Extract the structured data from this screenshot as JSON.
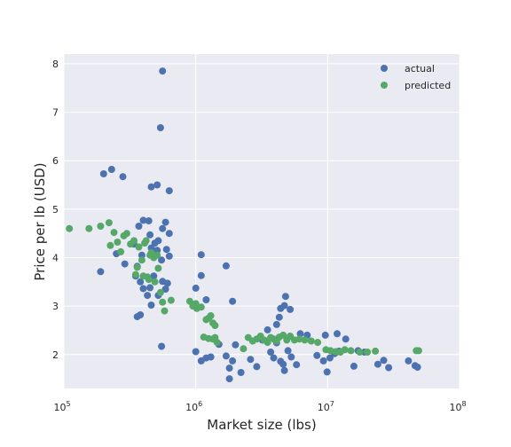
{
  "chart_data": {
    "type": "scatter",
    "xscale": "log",
    "xlabel": "Market size (lbs)",
    "ylabel": "Price per lb (USD)",
    "xlim": [
      100000,
      100000000
    ],
    "ylim": [
      1.3,
      8.2
    ],
    "grid": true,
    "legend_position": "top-right",
    "x_ticks": [
      {
        "base": "10",
        "exp": "5"
      },
      {
        "base": "10",
        "exp": "6"
      },
      {
        "base": "10",
        "exp": "7"
      },
      {
        "base": "10",
        "exp": "8"
      }
    ],
    "y_ticks": [
      "2",
      "3",
      "4",
      "5",
      "6",
      "7",
      "8"
    ],
    "series": [
      {
        "name": "actual",
        "color": "#4c72b0",
        "points": [
          [
            560000,
            7.85
          ],
          [
            540000,
            6.68
          ],
          [
            200000,
            5.73
          ],
          [
            230000,
            5.82
          ],
          [
            280000,
            5.67
          ],
          [
            510000,
            5.5
          ],
          [
            460000,
            5.46
          ],
          [
            630000,
            5.38
          ],
          [
            440000,
            4.76
          ],
          [
            590000,
            4.73
          ],
          [
            400000,
            4.77
          ],
          [
            370000,
            4.65
          ],
          [
            560000,
            4.6
          ],
          [
            630000,
            4.5
          ],
          [
            450000,
            4.47
          ],
          [
            520000,
            4.35
          ],
          [
            490000,
            4.3
          ],
          [
            340000,
            4.28
          ],
          [
            600000,
            4.17
          ],
          [
            460000,
            4.2
          ],
          [
            510000,
            4.15
          ],
          [
            250000,
            4.08
          ],
          [
            390000,
            4.05
          ],
          [
            630000,
            4.03
          ],
          [
            550000,
            3.95
          ],
          [
            290000,
            3.87
          ],
          [
            360000,
            3.82
          ],
          [
            190000,
            3.71
          ],
          [
            480000,
            3.62
          ],
          [
            350000,
            3.62
          ],
          [
            560000,
            3.51
          ],
          [
            380000,
            3.5
          ],
          [
            610000,
            3.47
          ],
          [
            400000,
            3.36
          ],
          [
            450000,
            3.38
          ],
          [
            590000,
            3.35
          ],
          [
            430000,
            3.22
          ],
          [
            520000,
            3.22
          ],
          [
            460000,
            3.02
          ],
          [
            360000,
            2.78
          ],
          [
            380000,
            2.82
          ],
          [
            1100000,
            4.06
          ],
          [
            1100000,
            3.63
          ],
          [
            1000000,
            3.37
          ],
          [
            1700000,
            3.83
          ],
          [
            1900000,
            3.1
          ],
          [
            1200000,
            3.13
          ],
          [
            550000,
            2.17
          ],
          [
            1000000,
            2.06
          ],
          [
            1200000,
            1.93
          ],
          [
            1100000,
            1.87
          ],
          [
            1300000,
            1.95
          ],
          [
            1500000,
            2.21
          ],
          [
            1700000,
            1.97
          ],
          [
            1800000,
            1.72
          ],
          [
            1900000,
            1.87
          ],
          [
            2000000,
            2.2
          ],
          [
            1800000,
            1.5
          ],
          [
            2200000,
            1.63
          ],
          [
            2600000,
            1.9
          ],
          [
            2900000,
            1.75
          ],
          [
            3200000,
            2.3
          ],
          [
            3500000,
            2.51
          ],
          [
            3700000,
            2.05
          ],
          [
            3900000,
            1.93
          ],
          [
            4100000,
            2.62
          ],
          [
            4300000,
            2.77
          ],
          [
            4400000,
            2.95
          ],
          [
            4700000,
            3.01
          ],
          [
            4800000,
            3.2
          ],
          [
            5200000,
            2.93
          ],
          [
            4100000,
            2.24
          ],
          [
            4400000,
            1.86
          ],
          [
            4600000,
            1.8
          ],
          [
            4700000,
            1.67
          ],
          [
            5000000,
            2.08
          ],
          [
            5300000,
            1.95
          ],
          [
            5800000,
            1.79
          ],
          [
            6200000,
            2.43
          ],
          [
            7000000,
            2.4
          ],
          [
            8300000,
            1.98
          ],
          [
            9300000,
            1.87
          ],
          [
            9600000,
            2.4
          ],
          [
            9900000,
            1.64
          ],
          [
            10400000,
            1.93
          ],
          [
            11300000,
            2.02
          ],
          [
            11800000,
            2.43
          ],
          [
            12200000,
            2.07
          ],
          [
            13700000,
            2.32
          ],
          [
            15800000,
            1.76
          ],
          [
            17000000,
            2.08
          ],
          [
            19000000,
            2.05
          ],
          [
            24000000,
            1.8
          ],
          [
            26600000,
            1.88
          ],
          [
            29000000,
            1.73
          ],
          [
            41000000,
            1.87
          ],
          [
            46000000,
            1.77
          ],
          [
            48000000,
            1.74
          ]
        ]
      },
      {
        "name": "predicted",
        "color": "#55a868",
        "points": [
          [
            110000,
            4.6
          ],
          [
            155000,
            4.6
          ],
          [
            190000,
            4.65
          ],
          [
            220000,
            4.72
          ],
          [
            225000,
            4.25
          ],
          [
            240000,
            4.52
          ],
          [
            255000,
            4.32
          ],
          [
            270000,
            4.12
          ],
          [
            285000,
            4.45
          ],
          [
            300000,
            4.5
          ],
          [
            320000,
            4.28
          ],
          [
            340000,
            4.35
          ],
          [
            350000,
            3.65
          ],
          [
            360000,
            3.8
          ],
          [
            370000,
            4.22
          ],
          [
            390000,
            3.95
          ],
          [
            400000,
            3.62
          ],
          [
            410000,
            4.3
          ],
          [
            420000,
            4.35
          ],
          [
            430000,
            3.6
          ],
          [
            440000,
            3.55
          ],
          [
            450000,
            4.05
          ],
          [
            460000,
            4.1
          ],
          [
            480000,
            4.0
          ],
          [
            490000,
            3.5
          ],
          [
            510000,
            4.05
          ],
          [
            520000,
            3.78
          ],
          [
            540000,
            3.28
          ],
          [
            560000,
            3.08
          ],
          [
            580000,
            2.9
          ],
          [
            650000,
            3.12
          ],
          [
            900000,
            3.1
          ],
          [
            950000,
            3.0
          ],
          [
            1000000,
            3.05
          ],
          [
            1020000,
            2.95
          ],
          [
            1100000,
            2.98
          ],
          [
            1200000,
            2.72
          ],
          [
            1250000,
            2.75
          ],
          [
            1300000,
            2.8
          ],
          [
            1350000,
            2.65
          ],
          [
            1400000,
            2.6
          ],
          [
            1150000,
            2.36
          ],
          [
            1250000,
            2.33
          ],
          [
            1350000,
            2.32
          ],
          [
            1400000,
            2.35
          ],
          [
            1450000,
            2.25
          ],
          [
            2300000,
            2.12
          ],
          [
            2500000,
            2.35
          ],
          [
            2700000,
            2.28
          ],
          [
            2900000,
            2.32
          ],
          [
            3100000,
            2.38
          ],
          [
            3300000,
            2.3
          ],
          [
            3500000,
            2.25
          ],
          [
            3700000,
            2.35
          ],
          [
            3900000,
            2.32
          ],
          [
            4100000,
            2.28
          ],
          [
            4300000,
            2.36
          ],
          [
            4600000,
            2.4
          ],
          [
            4900000,
            2.3
          ],
          [
            5200000,
            2.38
          ],
          [
            5600000,
            2.3
          ],
          [
            6100000,
            2.32
          ],
          [
            6700000,
            2.3
          ],
          [
            7500000,
            2.28
          ],
          [
            8400000,
            2.25
          ],
          [
            9700000,
            2.1
          ],
          [
            10500000,
            2.08
          ],
          [
            11500000,
            2.06
          ],
          [
            12500000,
            2.05
          ],
          [
            13500000,
            2.1
          ],
          [
            15000000,
            2.08
          ],
          [
            17500000,
            2.05
          ],
          [
            20000000,
            2.05
          ],
          [
            23000000,
            2.07
          ],
          [
            47000000,
            2.08
          ],
          [
            49000000,
            2.08
          ]
        ]
      }
    ]
  }
}
